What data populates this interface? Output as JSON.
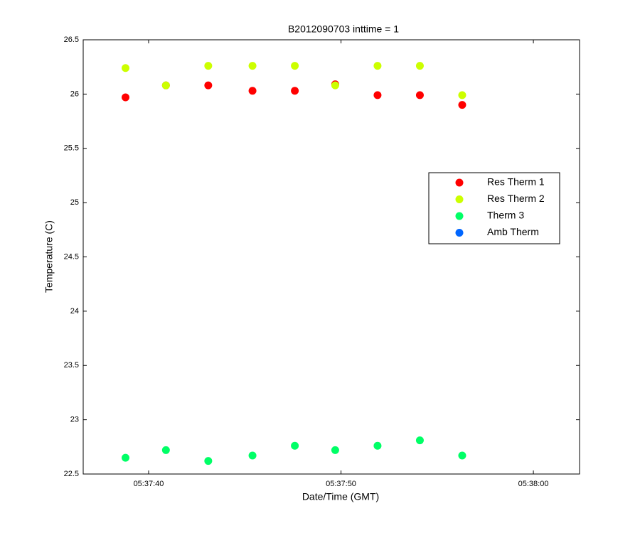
{
  "chart_data": {
    "type": "scatter",
    "title": "B2012090703 inttime = 1",
    "x_label": "Date/Time (GMT)",
    "y_label": "Temperature (C)",
    "x": [
      "05:37:38.8",
      "05:37:40.9",
      "05:37:43.1",
      "05:37:45.4",
      "05:37:47.6",
      "05:37:49.7",
      "05:37:51.9",
      "05:37:54.1",
      "05:37:56.3"
    ],
    "series": [
      {
        "name": "Res Therm 1",
        "color": "#ff0000",
        "values": [
          25.97,
          26.08,
          26.08,
          26.03,
          26.03,
          26.09,
          25.99,
          25.99,
          25.9
        ]
      },
      {
        "name": "Res Therm 2",
        "color": "#ccff00",
        "values": [
          26.24,
          26.08,
          26.26,
          26.26,
          26.26,
          26.08,
          26.26,
          26.26,
          25.99
        ]
      },
      {
        "name": "Therm 3",
        "color": "#00ff66",
        "values": [
          22.65,
          22.72,
          22.62,
          22.67,
          22.76,
          22.72,
          22.76,
          22.81,
          22.67
        ]
      },
      {
        "name": "Amb Therm",
        "color": "#0066ff",
        "values": [
          null,
          null,
          null,
          null,
          null,
          null,
          null,
          null,
          null
        ]
      }
    ],
    "xlim": [
      "05:37:36.6",
      "05:38:02.4"
    ],
    "xticks": [
      "05:37:40",
      "05:37:50",
      "05:38:00"
    ],
    "ylim": [
      22.5,
      26.5
    ],
    "yticks": [
      22.5,
      23,
      23.5,
      24,
      24.5,
      25,
      25.5,
      26,
      26.5
    ],
    "legend": "right"
  }
}
